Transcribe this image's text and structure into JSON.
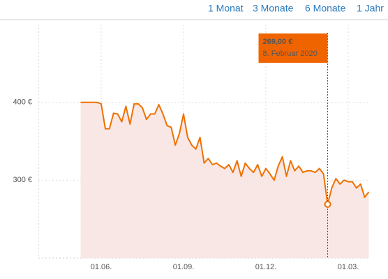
{
  "chart_data": {
    "type": "line",
    "range_buttons": [
      "1 Monat",
      "3 Monate",
      "6 Monate",
      "1 Jahr"
    ],
    "categories": [
      null,
      null,
      null,
      null,
      null,
      "01.06.",
      null,
      null,
      null,
      null,
      null,
      null,
      null,
      null,
      null,
      null,
      null,
      null,
      null,
      null,
      null,
      null,
      null,
      null,
      null,
      "01.09.",
      null,
      null,
      null,
      null,
      null,
      null,
      null,
      null,
      null,
      null,
      null,
      null,
      null,
      null,
      null,
      null,
      null,
      null,
      null,
      "01.12.",
      null,
      null,
      null,
      null,
      null,
      null,
      null,
      null,
      null,
      null,
      null,
      null,
      null,
      null,
      null,
      null,
      null,
      null,
      null,
      "01.03.",
      null,
      null,
      null,
      null,
      null
    ],
    "values": [
      400,
      400,
      400,
      400,
      400,
      398,
      366,
      366,
      386,
      385,
      375,
      395,
      372,
      398,
      398,
      393,
      378,
      385,
      385,
      397,
      385,
      370,
      368,
      345,
      360,
      385,
      355,
      345,
      340,
      355,
      322,
      328,
      320,
      322,
      318,
      315,
      320,
      310,
      325,
      305,
      322,
      315,
      310,
      320,
      305,
      315,
      308,
      300,
      318,
      330,
      305,
      325,
      312,
      318,
      310,
      312,
      312,
      310,
      315,
      308,
      269,
      290,
      302,
      295,
      300,
      298,
      298,
      290,
      295,
      278,
      285
    ],
    "value_labels": [
      null,
      null,
      null,
      null,
      null,
      null,
      null,
      null,
      null,
      null,
      null,
      null,
      null,
      null,
      null,
      null,
      null,
      null,
      null,
      null,
      null,
      null,
      null,
      null,
      null,
      null,
      null,
      null,
      null,
      null,
      null,
      null,
      null,
      null,
      null,
      null,
      null,
      null,
      null,
      null,
      null,
      null,
      null,
      null,
      null,
      null,
      null,
      null,
      null,
      null,
      null,
      null,
      null,
      null,
      null,
      null,
      null,
      null,
      null,
      null,
      "269,00 €",
      null,
      null,
      null,
      null,
      null,
      null,
      null,
      null,
      null,
      null
    ],
    "highlight_date": "8. Februar 2020",
    "color": "#f07000",
    "fill_color": "#f8e7e5",
    "ylim": [
      200,
      500
    ],
    "yticks": [
      {
        "value": 300,
        "label": "300 €"
      },
      {
        "value": 400,
        "label": "400 €"
      }
    ],
    "grid": true
  }
}
